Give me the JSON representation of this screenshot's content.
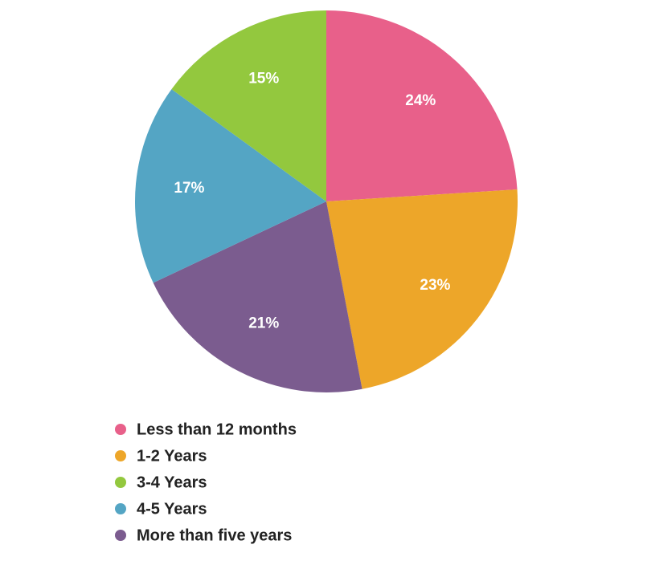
{
  "chart_data": {
    "type": "pie",
    "categories": [
      "Less than 12 months",
      "1-2 Years",
      "3-4 Years",
      "4-5 Years",
      "More than five years"
    ],
    "values": [
      24,
      23,
      15,
      17,
      21
    ],
    "value_labels": [
      "24%",
      "23%",
      "15%",
      "17%",
      "21%"
    ],
    "colors": [
      "#e8608a",
      "#eda629",
      "#93c83e",
      "#54a5c4",
      "#7b5c8f"
    ],
    "slice_order": [
      0,
      1,
      4,
      3,
      2
    ],
    "legend": "bottom"
  }
}
